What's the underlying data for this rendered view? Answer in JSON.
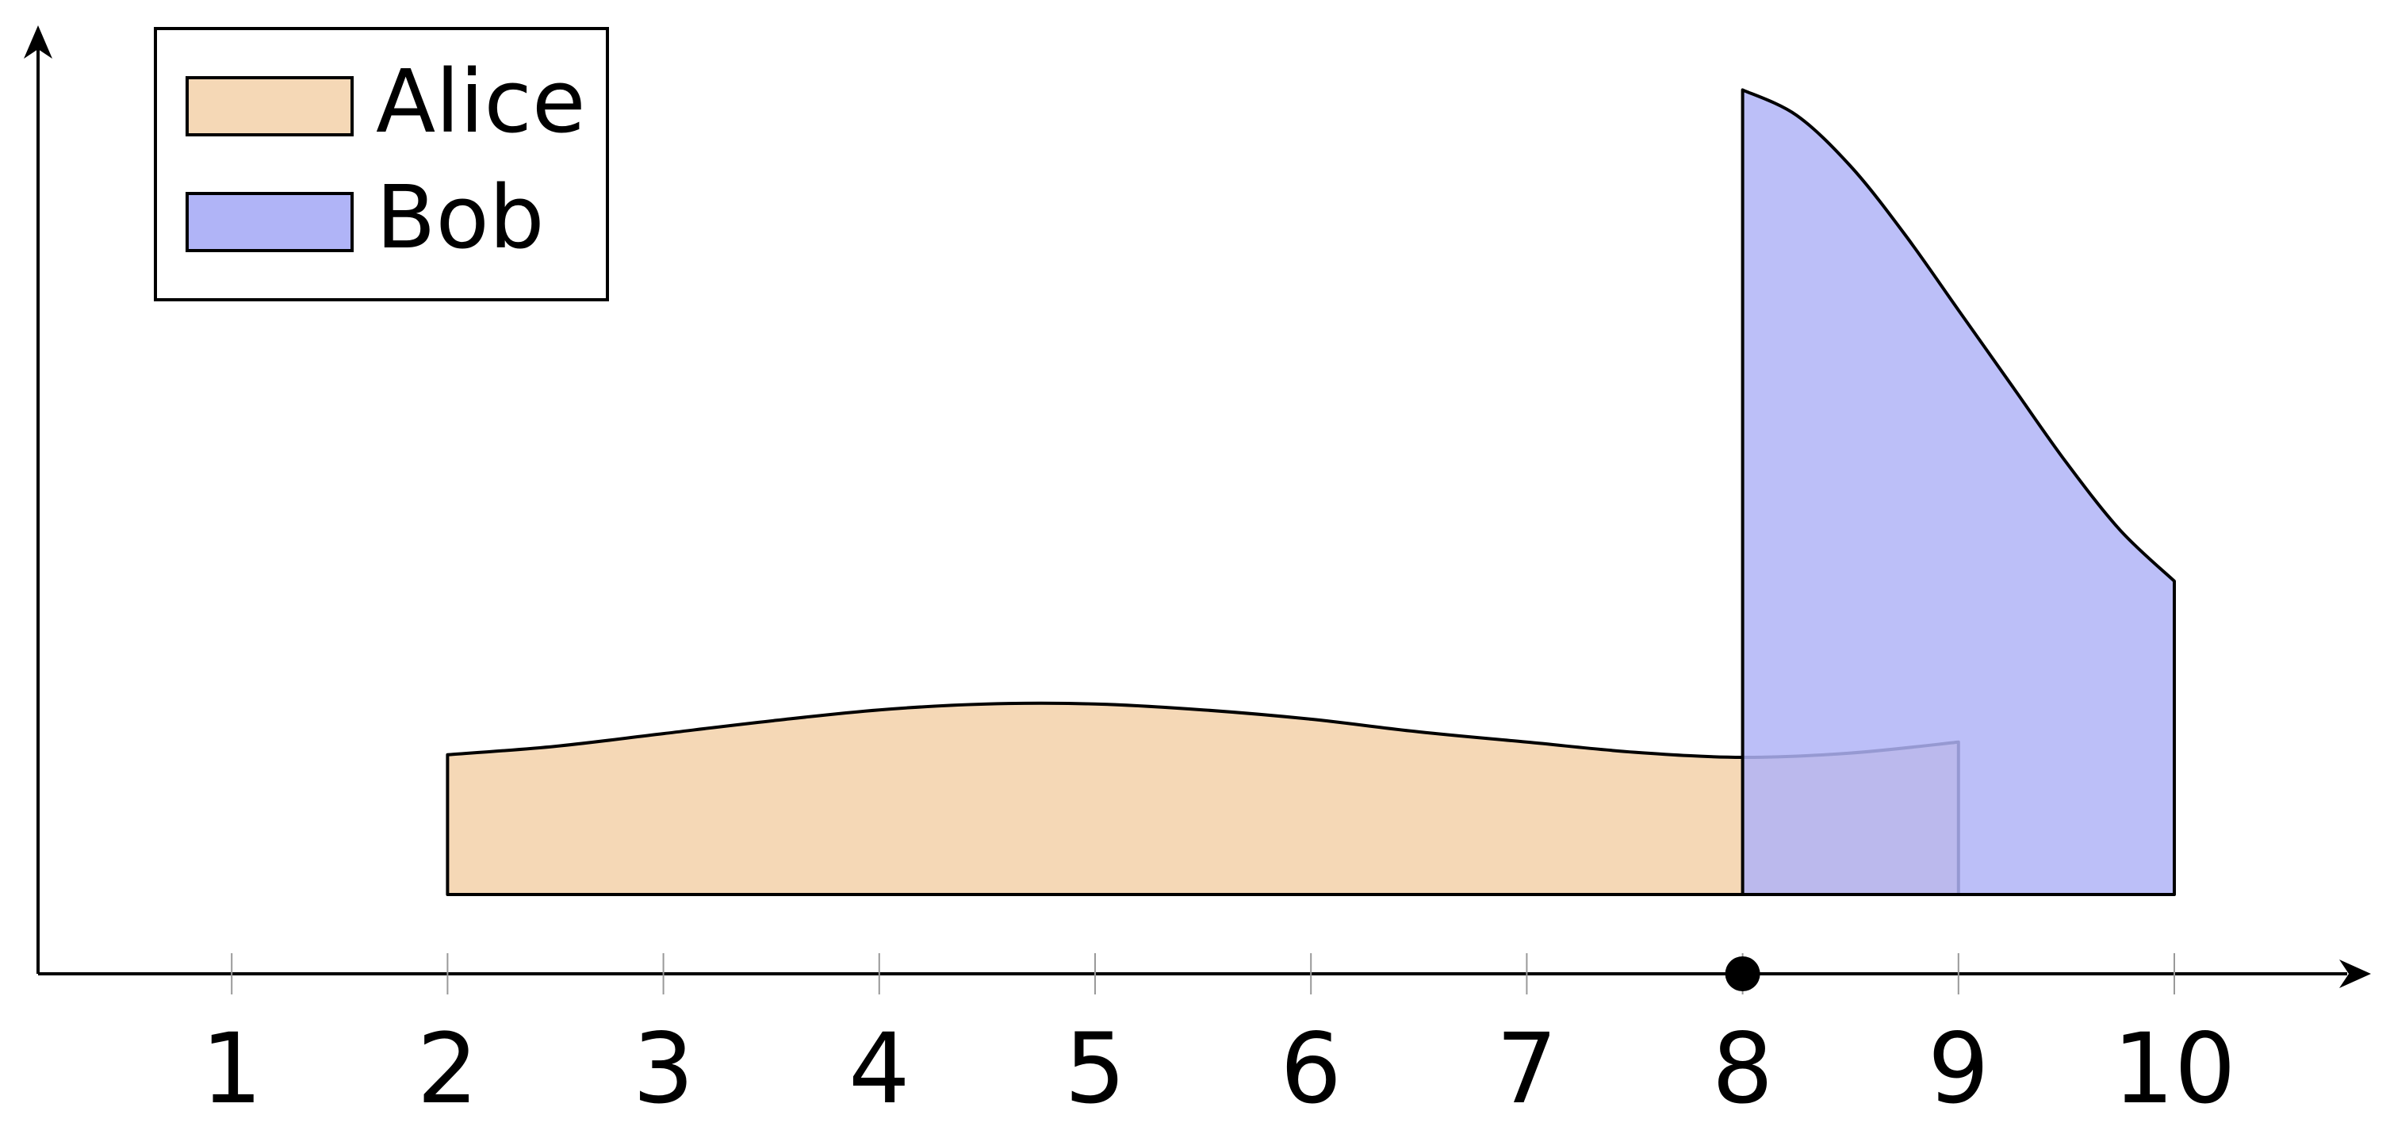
{
  "chart_data": {
    "type": "area",
    "title": "",
    "xlabel": "",
    "ylabel": "",
    "xlim": [
      0.1,
      10.8
    ],
    "ylim": [
      0,
      1
    ],
    "grid": false,
    "legend_position": "top-left",
    "x_ticks": [
      "1",
      "2",
      "3",
      "4",
      "5",
      "6",
      "7",
      "8",
      "9",
      "10"
    ],
    "marker": {
      "x": 8
    },
    "series": [
      {
        "name": "Alice",
        "color": "#f5d8b6",
        "x_range": [
          2,
          9
        ],
        "x": [
          2,
          2.5,
          3,
          3.5,
          4,
          4.5,
          5,
          5.5,
          6,
          6.5,
          7,
          7.5,
          8,
          8.5,
          9
        ],
        "top": [
          0.165,
          0.175,
          0.19,
          0.205,
          0.218,
          0.225,
          0.225,
          0.218,
          0.207,
          0.192,
          0.18,
          0.168,
          0.162,
          0.167,
          0.18
        ]
      },
      {
        "name": "Bob",
        "color": "#b0b4f7",
        "x_range": [
          8,
          10
        ],
        "x": [
          8,
          8.25,
          8.5,
          8.75,
          9,
          9.25,
          9.5,
          9.75,
          10
        ],
        "top": [
          0.95,
          0.92,
          0.86,
          0.78,
          0.69,
          0.6,
          0.51,
          0.43,
          0.37
        ]
      }
    ]
  }
}
